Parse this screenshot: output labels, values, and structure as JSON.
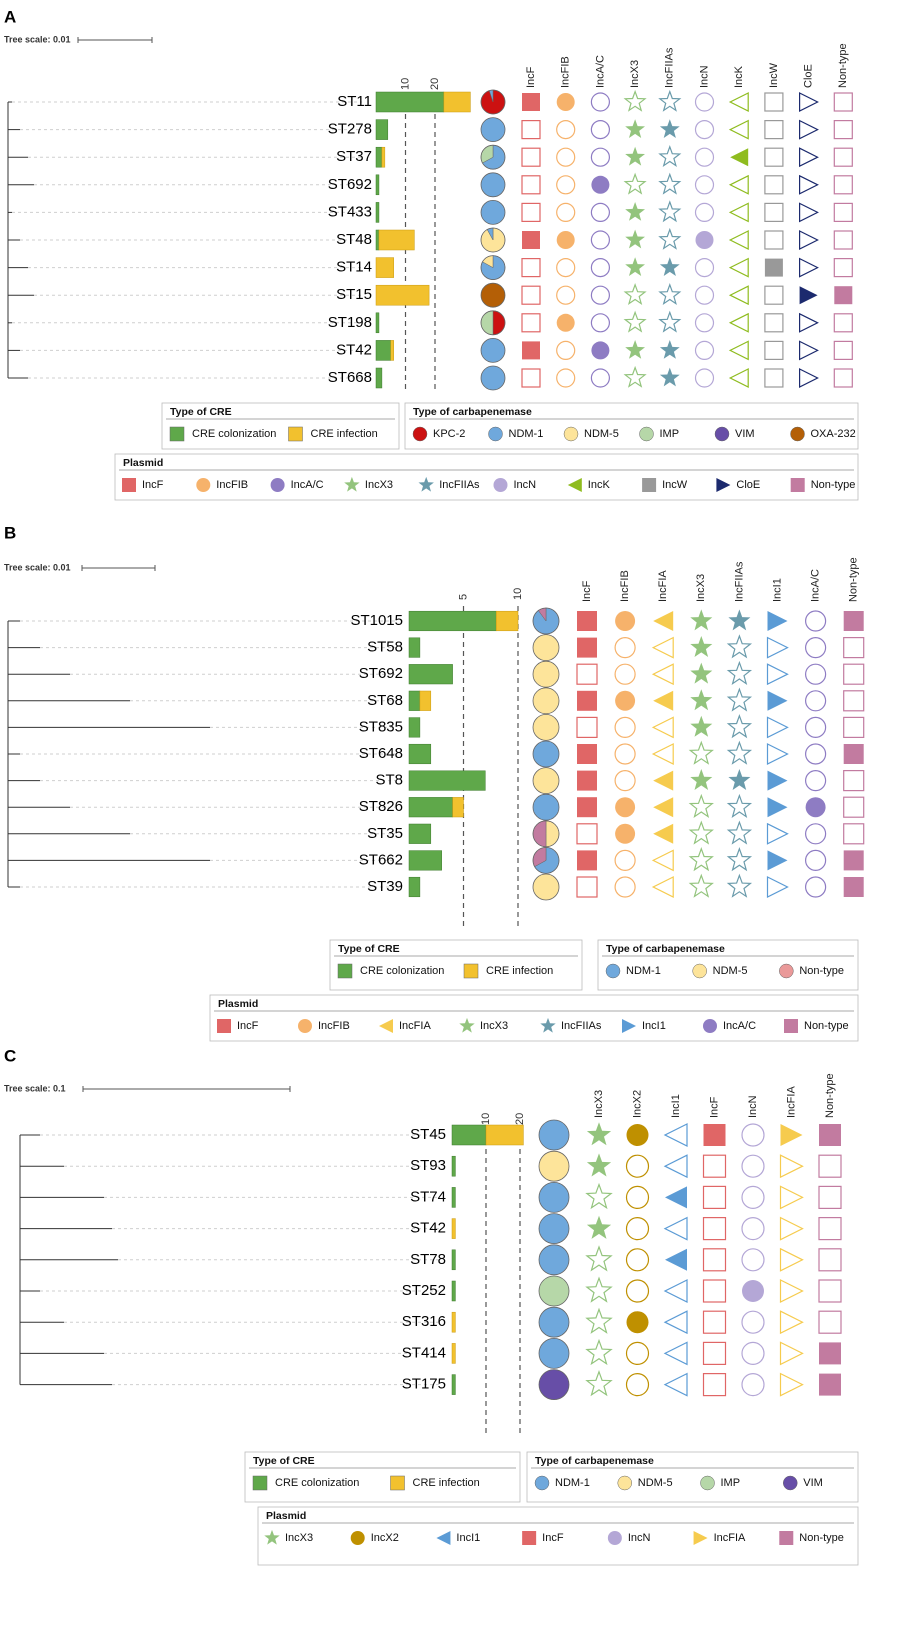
{
  "colors": {
    "colonization": "#5fa84a",
    "infection": "#f2c12e",
    "KPC-2": "#cc1111",
    "NDM-1": "#6fa8dc",
    "NDM-5": "#fde49a",
    "IMP": "#b6d7a8",
    "VIM": "#674ea7",
    "OXA-232": "#b45f06",
    "NonTypeCarb": "#ea9999",
    "IncF": "#e06666",
    "IncFIB": "#f6b26b",
    "IncA/C": "#8e7cc3",
    "IncX3": "#93c47d",
    "IncFIIAs": "#6a9bab",
    "IncN": "#b4a7d6",
    "IncK": "#8fbc1f",
    "IncW": "#999999",
    "CloE": "#1c2a6e",
    "Non-type": "#c27ba0",
    "IncFIA": "#f6cb4e",
    "IncI1": "#5b9bd5",
    "IncX2": "#bf9000"
  },
  "panels": [
    {
      "label": "A",
      "tree_scale": "Tree scale: 0.01",
      "bar_ticks": [
        "10",
        "20"
      ],
      "plasmid_columns": [
        "IncF",
        "IncFIB",
        "IncA/C",
        "IncX3",
        "IncFIIAs",
        "IncN",
        "IncK",
        "IncW",
        "CloE",
        "Non-type"
      ],
      "rows": [
        {
          "st": "ST11",
          "col": 23,
          "inf": 9,
          "carb": [
            [
              "KPC-2",
              0.95
            ],
            [
              "NDM-1",
              0.05
            ]
          ],
          "pl": [
            "IncF",
            "IncFIB"
          ]
        },
        {
          "st": "ST278",
          "col": 4,
          "inf": 0,
          "carb": [
            [
              "NDM-1",
              1
            ]
          ],
          "pl": [
            "IncX3",
            "IncFIIAs"
          ]
        },
        {
          "st": "ST37",
          "col": 2,
          "inf": 1,
          "carb": [
            [
              "NDM-1",
              0.67
            ],
            [
              "IMP",
              0.33
            ]
          ],
          "pl": [
            "IncX3",
            "IncK"
          ]
        },
        {
          "st": "ST692",
          "col": 1,
          "inf": 0,
          "carb": [
            [
              "NDM-1",
              1
            ]
          ],
          "pl": [
            "IncA/C"
          ]
        },
        {
          "st": "ST433",
          "col": 1,
          "inf": 0,
          "carb": [
            [
              "NDM-1",
              1
            ]
          ],
          "pl": [
            "IncX3"
          ]
        },
        {
          "st": "ST48",
          "col": 1,
          "inf": 12,
          "carb": [
            [
              "NDM-5",
              0.92
            ],
            [
              "NDM-1",
              0.08
            ]
          ],
          "pl": [
            "IncF",
            "IncFIB",
            "IncX3",
            "IncN"
          ]
        },
        {
          "st": "ST14",
          "col": 0,
          "inf": 6,
          "carb": [
            [
              "NDM-1",
              0.83
            ],
            [
              "NDM-5",
              0.17
            ]
          ],
          "pl": [
            "IncX3",
            "IncFIIAs",
            "IncW"
          ]
        },
        {
          "st": "ST15",
          "col": 0,
          "inf": 18,
          "carb": [
            [
              "OXA-232",
              1
            ]
          ],
          "pl": [
            "CloE",
            "Non-type"
          ]
        },
        {
          "st": "ST198",
          "col": 1,
          "inf": 0,
          "carb": [
            [
              "KPC-2",
              0.5
            ],
            [
              "IMP",
              0.5
            ]
          ],
          "pl": [
            "IncFIB"
          ]
        },
        {
          "st": "ST42",
          "col": 5,
          "inf": 1,
          "carb": [
            [
              "NDM-1",
              1
            ]
          ],
          "pl": [
            "IncF",
            "IncA/C",
            "IncX3",
            "IncFIIAs"
          ]
        },
        {
          "st": "ST668",
          "col": 2,
          "inf": 0,
          "carb": [
            [
              "NDM-1",
              1
            ]
          ],
          "pl": [
            "IncFIIAs"
          ]
        }
      ],
      "legend": {
        "cre_title": "Type of CRE",
        "cre_items": [
          "CRE colonization",
          "CRE infection"
        ],
        "carb_title": "Type of carbapenemase",
        "carb_items": [
          "KPC-2",
          "NDM-1",
          "NDM-5",
          "IMP",
          "VIM",
          "OXA-232"
        ],
        "plasmid_title": "Plasmid",
        "plasmid_items": [
          "IncF",
          "IncFIB",
          "IncA/C",
          "IncX3",
          "IncFIIAs",
          "IncN",
          "IncK",
          "IncW",
          "CloE",
          "Non-type"
        ]
      }
    },
    {
      "label": "B",
      "tree_scale": "Tree scale: 0.01",
      "bar_ticks": [
        "5",
        "10"
      ],
      "plasmid_columns": [
        "IncF",
        "IncFIB",
        "IncFIA",
        "IncX3",
        "IncFIIAs",
        "IncI1",
        "IncA/C",
        "Non-type"
      ],
      "rows": [
        {
          "st": "ST1015",
          "col": 8,
          "inf": 2,
          "carb": [
            [
              "NDM-1",
              0.9
            ],
            [
              "Non-type",
              0.1
            ]
          ],
          "pl": [
            "IncF",
            "IncFIB",
            "IncFIA",
            "IncX3",
            "IncFIIAs",
            "IncI1",
            "Non-type"
          ]
        },
        {
          "st": "ST58",
          "col": 1,
          "inf": 0,
          "carb": [
            [
              "NDM-5",
              1
            ]
          ],
          "pl": [
            "IncF",
            "IncX3"
          ]
        },
        {
          "st": "ST692",
          "col": 4,
          "inf": 0,
          "carb": [
            [
              "NDM-5",
              1
            ]
          ],
          "pl": [
            "IncX3"
          ]
        },
        {
          "st": "ST68",
          "col": 1,
          "inf": 1,
          "carb": [
            [
              "NDM-5",
              1
            ]
          ],
          "pl": [
            "IncF",
            "IncFIB",
            "IncFIA",
            "IncX3",
            "IncI1"
          ]
        },
        {
          "st": "ST835",
          "col": 1,
          "inf": 0,
          "carb": [
            [
              "NDM-5",
              1
            ]
          ],
          "pl": [
            "IncX3"
          ]
        },
        {
          "st": "ST648",
          "col": 2,
          "inf": 0,
          "carb": [
            [
              "NDM-1",
              1
            ]
          ],
          "pl": [
            "IncF",
            "Non-type"
          ]
        },
        {
          "st": "ST8",
          "col": 7,
          "inf": 0,
          "carb": [
            [
              "NDM-5",
              1
            ]
          ],
          "pl": [
            "IncF",
            "IncFIA",
            "IncX3",
            "IncFIIAs",
            "IncI1"
          ]
        },
        {
          "st": "ST826",
          "col": 4,
          "inf": 1,
          "carb": [
            [
              "NDM-1",
              1
            ]
          ],
          "pl": [
            "IncF",
            "IncFIB",
            "IncFIA",
            "IncI1",
            "IncA/C"
          ]
        },
        {
          "st": "ST35",
          "col": 2,
          "inf": 0,
          "carb": [
            [
              "NDM-5",
              0.5
            ],
            [
              "Non-type",
              0.5
            ]
          ],
          "pl": [
            "IncFIB",
            "IncFIA"
          ]
        },
        {
          "st": "ST662",
          "col": 3,
          "inf": 0,
          "carb": [
            [
              "NDM-1",
              0.67
            ],
            [
              "Non-type",
              0.33
            ]
          ],
          "pl": [
            "IncF",
            "IncI1",
            "Non-type"
          ]
        },
        {
          "st": "ST39",
          "col": 1,
          "inf": 0,
          "carb": [
            [
              "NDM-5",
              1
            ]
          ],
          "pl": [
            "Non-type"
          ]
        }
      ],
      "legend": {
        "cre_title": "Type of CRE",
        "cre_items": [
          "CRE colonization",
          "CRE infection"
        ],
        "carb_title": "Type of carbapenemase",
        "carb_items": [
          "NDM-1",
          "NDM-5",
          "Non-type"
        ],
        "plasmid_title": "Plasmid",
        "plasmid_items": [
          "IncF",
          "IncFIB",
          "IncFIA",
          "IncX3",
          "IncFIIAs",
          "IncI1",
          "IncA/C",
          "Non-type"
        ]
      }
    },
    {
      "label": "C",
      "tree_scale": "Tree scale: 0.1",
      "bar_ticks": [
        "10",
        "20"
      ],
      "plasmid_columns": [
        "IncX3",
        "IncX2",
        "IncI1",
        "IncF",
        "IncN",
        "IncFIA",
        "Non-type"
      ],
      "rows": [
        {
          "st": "ST45",
          "col": 10,
          "inf": 11,
          "carb": [
            [
              "NDM-1",
              1
            ]
          ],
          "pl": [
            "IncX3",
            "IncX2",
            "IncF",
            "IncFIA",
            "Non-type"
          ]
        },
        {
          "st": "ST93",
          "col": 1,
          "inf": 0,
          "carb": [
            [
              "NDM-5",
              1
            ]
          ],
          "pl": [
            "IncX3"
          ]
        },
        {
          "st": "ST74",
          "col": 1,
          "inf": 0,
          "carb": [
            [
              "NDM-1",
              1
            ]
          ],
          "pl": [
            "IncI1"
          ]
        },
        {
          "st": "ST42",
          "col": 0,
          "inf": 1,
          "carb": [
            [
              "NDM-1",
              1
            ]
          ],
          "pl": [
            "IncX3"
          ]
        },
        {
          "st": "ST78",
          "col": 1,
          "inf": 0,
          "carb": [
            [
              "NDM-1",
              1
            ]
          ],
          "pl": [
            "IncI1"
          ]
        },
        {
          "st": "ST252",
          "col": 1,
          "inf": 0,
          "carb": [
            [
              "IMP",
              1
            ]
          ],
          "pl": [
            "IncN"
          ]
        },
        {
          "st": "ST316",
          "col": 0,
          "inf": 1,
          "carb": [
            [
              "NDM-1",
              1
            ]
          ],
          "pl": [
            "IncX2"
          ]
        },
        {
          "st": "ST414",
          "col": 0,
          "inf": 1,
          "carb": [
            [
              "NDM-1",
              1
            ]
          ],
          "pl": [
            "Non-type"
          ]
        },
        {
          "st": "ST175",
          "col": 1,
          "inf": 0,
          "carb": [
            [
              "VIM",
              1
            ]
          ],
          "pl": [
            "Non-type"
          ]
        }
      ],
      "legend": {
        "cre_title": "Type of CRE",
        "cre_items": [
          "CRE colonization",
          "CRE infection"
        ],
        "carb_title": "Type of carbapenemase",
        "carb_items": [
          "NDM-1",
          "NDM-5",
          "IMP",
          "VIM"
        ],
        "plasmid_title": "Plasmid",
        "plasmid_items": [
          "IncX3",
          "IncX2",
          "IncI1",
          "IncF",
          "IncN",
          "IncFIA",
          "Non-type"
        ]
      }
    }
  ]
}
